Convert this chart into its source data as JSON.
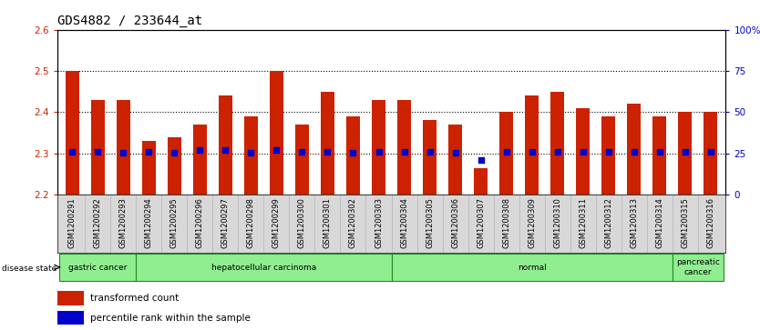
{
  "title": "GDS4882 / 233644_at",
  "samples": [
    "GSM1200291",
    "GSM1200292",
    "GSM1200293",
    "GSM1200294",
    "GSM1200295",
    "GSM1200296",
    "GSM1200297",
    "GSM1200298",
    "GSM1200299",
    "GSM1200300",
    "GSM1200301",
    "GSM1200302",
    "GSM1200303",
    "GSM1200304",
    "GSM1200305",
    "GSM1200306",
    "GSM1200307",
    "GSM1200308",
    "GSM1200309",
    "GSM1200310",
    "GSM1200311",
    "GSM1200312",
    "GSM1200313",
    "GSM1200314",
    "GSM1200315",
    "GSM1200316"
  ],
  "bar_values": [
    2.5,
    2.43,
    2.43,
    2.33,
    2.34,
    2.37,
    2.44,
    2.39,
    2.5,
    2.37,
    2.45,
    2.39,
    2.43,
    2.43,
    2.38,
    2.37,
    2.265,
    2.4,
    2.44,
    2.45,
    2.41,
    2.39,
    2.42,
    2.39,
    2.4,
    2.4
  ],
  "percentile_values": [
    2.305,
    2.305,
    2.302,
    2.303,
    2.302,
    2.308,
    2.308,
    2.302,
    2.308,
    2.304,
    2.303,
    2.302,
    2.303,
    2.303,
    2.303,
    2.302,
    2.285,
    2.303,
    2.305,
    2.305,
    2.303,
    2.303,
    2.303,
    2.303,
    2.303,
    2.303
  ],
  "bar_color": "#cc2200",
  "dot_color": "#0000cc",
  "ymin": 2.2,
  "ymax": 2.6,
  "y2min": 0,
  "y2max": 100,
  "yticks": [
    2.2,
    2.3,
    2.4,
    2.5,
    2.6
  ],
  "ytick_labels": [
    "2.2",
    "2.3",
    "2.4",
    "2.5",
    "2.6"
  ],
  "y2ticks": [
    0,
    25,
    50,
    75,
    100
  ],
  "y2tick_labels": [
    "0",
    "25",
    "50",
    "75",
    "100%"
  ],
  "hlines": [
    2.3,
    2.4,
    2.5
  ],
  "group_boundaries": [
    {
      "label": "gastric cancer",
      "start": 0,
      "end": 3
    },
    {
      "label": "hepatocellular carcinoma",
      "start": 3,
      "end": 13
    },
    {
      "label": "normal",
      "start": 13,
      "end": 24
    },
    {
      "label": "pancreatic\ncancer",
      "start": 24,
      "end": 26
    }
  ],
  "disease_state_label": "disease state",
  "legend_items": [
    {
      "color": "#cc2200",
      "label": "transformed count"
    },
    {
      "color": "#0000cc",
      "label": "percentile rank within the sample"
    }
  ],
  "bg_color": "#ffffff",
  "plot_bg_color": "#ffffff",
  "tick_label_color_left": "#cc2200",
  "tick_label_color_right": "#0000cc",
  "bar_width": 0.55,
  "title_fontsize": 10,
  "tick_fontsize": 7.5,
  "group_color": "#90ee90",
  "group_border": "#228B22"
}
